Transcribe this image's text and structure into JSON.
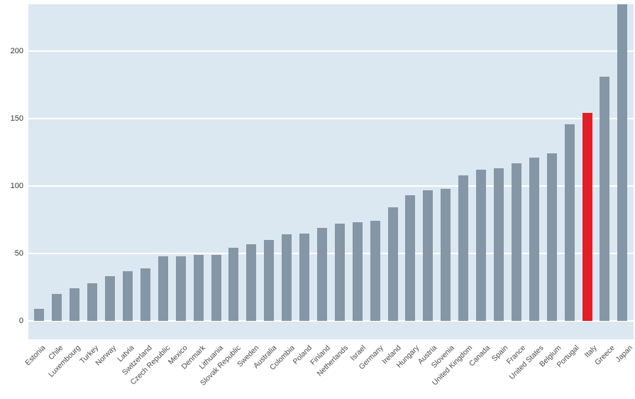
{
  "chart_data": {
    "type": "bar",
    "title": "",
    "categories": [
      "Estonia",
      "Chile",
      "Luxembourg",
      "Turkey",
      "Norway",
      "Latvia",
      "Switzerland",
      "Czech Republic",
      "Mexico",
      "Denmark",
      "Lithuania",
      "Slovak Republic",
      "Sweden",
      "Australia",
      "Colombia",
      "Poland",
      "Finland",
      "Netherlands",
      "Israel",
      "Germany",
      "Ireland",
      "Hungary",
      "Austria",
      "Slovenia",
      "United Kingdom",
      "Canada",
      "Spain",
      "France",
      "United States",
      "Belgium",
      "Portugal",
      "Italy",
      "Greece",
      "Japan"
    ],
    "values": [
      9,
      20,
      24,
      28,
      33,
      37,
      39,
      48,
      48,
      49,
      49,
      54,
      57,
      60,
      64,
      65,
      69,
      72,
      73,
      74,
      84,
      93,
      97,
      98,
      108,
      112,
      113,
      117,
      121,
      124,
      146,
      154,
      181,
      235
    ],
    "highlight_category": "Italy",
    "yticks": [
      0,
      50,
      100,
      150,
      200
    ],
    "ylim": [
      0,
      235
    ],
    "xlabel": "",
    "ylabel": "",
    "legend": "none",
    "grid": "horizontal",
    "colors": {
      "bar": "#8597a6",
      "highlight": "#e31e26",
      "plot_background": "#dbe8f1",
      "gridline": "#ffffff",
      "y_tick_text": "#333333",
      "x_tick_text": "#4a4a4a"
    }
  }
}
